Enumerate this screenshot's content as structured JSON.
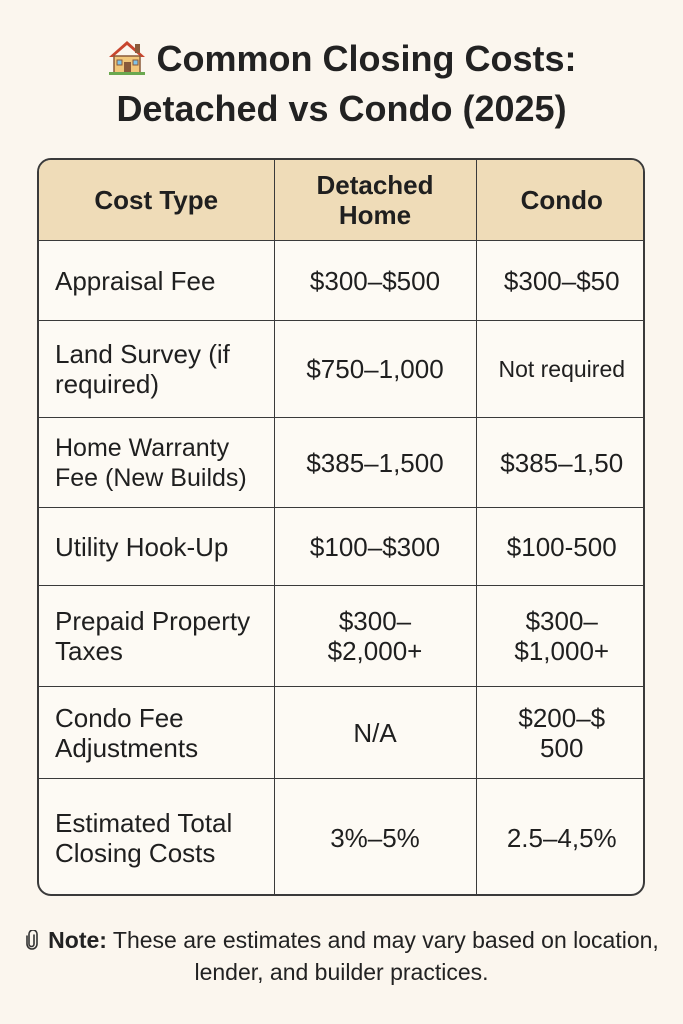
{
  "title": {
    "icon": "house-icon",
    "line1": "Common Closing Costs:",
    "line2": "Detached vs Condo (2025)"
  },
  "table": {
    "headers": [
      "Cost Type",
      "Detached Home",
      "Condo"
    ],
    "rows": [
      {
        "cost_type": "Appraisal Fee",
        "detached": "$300–$500",
        "condo": "$300–$50"
      },
      {
        "cost_type": "Land Survey (if required)",
        "detached": "$750–1,000",
        "condo": "Not required"
      },
      {
        "cost_type": "Home Warranty Fee (New Builds)",
        "detached": "$385–1,500",
        "condo": "$385–1,50"
      },
      {
        "cost_type": "Utility Hook-Up",
        "detached": "$100–$300",
        "condo": "$100-500"
      },
      {
        "cost_type": "Prepaid Property Taxes",
        "detached": "$300–$2,000+",
        "condo": "$300–$1,000+"
      },
      {
        "cost_type": "Condo Fee Adjustments",
        "detached": "N/A",
        "condo": "$200–$ 500"
      },
      {
        "cost_type": "Estimated Total Closing Costs",
        "detached": "3%–5%",
        "condo": "2.5–4,5%"
      }
    ]
  },
  "note": {
    "icon": "paperclip-icon",
    "label": "Note:",
    "text": "These are estimates and may vary based on location, lender, and builder practices."
  }
}
